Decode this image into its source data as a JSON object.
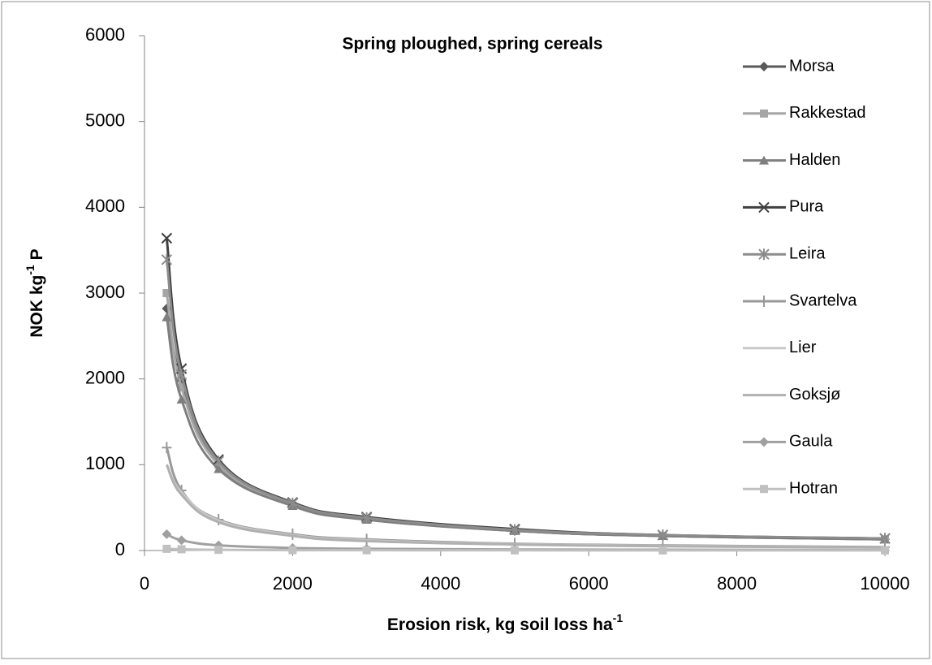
{
  "chart_data": {
    "type": "line",
    "title": "Spring ploughed, spring cereals",
    "x_label": [
      "Erosion risk, kg soil loss ha",
      "-1"
    ],
    "y_label": [
      "NOK kg",
      "-1",
      " P"
    ],
    "x": [
      300,
      500,
      1000,
      2000,
      3000,
      5000,
      7000,
      10000
    ],
    "xlim": [
      0,
      10000
    ],
    "xticks": [
      0,
      2000,
      4000,
      6000,
      8000,
      10000
    ],
    "ylim": [
      0,
      6000
    ],
    "yticks": [
      0,
      1000,
      2000,
      3000,
      4000,
      5000,
      6000
    ],
    "legend": "right",
    "series": [
      {
        "name": "Morsa",
        "color": "#595959",
        "marker": "diamond",
        "values": [
          2820,
          1980,
          1000,
          530,
          370,
          230,
          170,
          130
        ]
      },
      {
        "name": "Rakkestad",
        "color": "#a6a6a6",
        "marker": "square",
        "values": [
          3000,
          1900,
          1000,
          520,
          360,
          230,
          170,
          130
        ]
      },
      {
        "name": "Halden",
        "color": "#7f7f7f",
        "marker": "triangle",
        "values": [
          2720,
          1760,
          950,
          520,
          360,
          230,
          170,
          130
        ]
      },
      {
        "name": "Pura",
        "color": "#404040",
        "marker": "x",
        "values": [
          3640,
          2120,
          1060,
          560,
          390,
          250,
          180,
          140
        ]
      },
      {
        "name": "Leira",
        "color": "#8c8c8c",
        "marker": "star",
        "values": [
          3390,
          2050,
          1040,
          550,
          380,
          240,
          180,
          140
        ]
      },
      {
        "name": "Svartelva",
        "color": "#999999",
        "marker": "plus",
        "values": [
          1200,
          700,
          360,
          190,
          130,
          80,
          60,
          40
        ]
      },
      {
        "name": "Lier",
        "color": "#c8c8c8",
        "marker": "none",
        "values": [
          1000,
          680,
          350,
          180,
          120,
          75,
          55,
          35
        ]
      },
      {
        "name": "Goksjø",
        "color": "#b0b0b0",
        "marker": "none",
        "values": [
          1000,
          650,
          330,
          170,
          110,
          70,
          50,
          35
        ]
      },
      {
        "name": "Gaula",
        "color": "#a0a0a0",
        "marker": "diamond",
        "values": [
          190,
          120,
          60,
          30,
          20,
          12,
          9,
          6
        ]
      },
      {
        "name": "Hotran",
        "color": "#c0c0c0",
        "marker": "square",
        "values": [
          20,
          15,
          8,
          4,
          3,
          2,
          1,
          1
        ]
      }
    ]
  }
}
